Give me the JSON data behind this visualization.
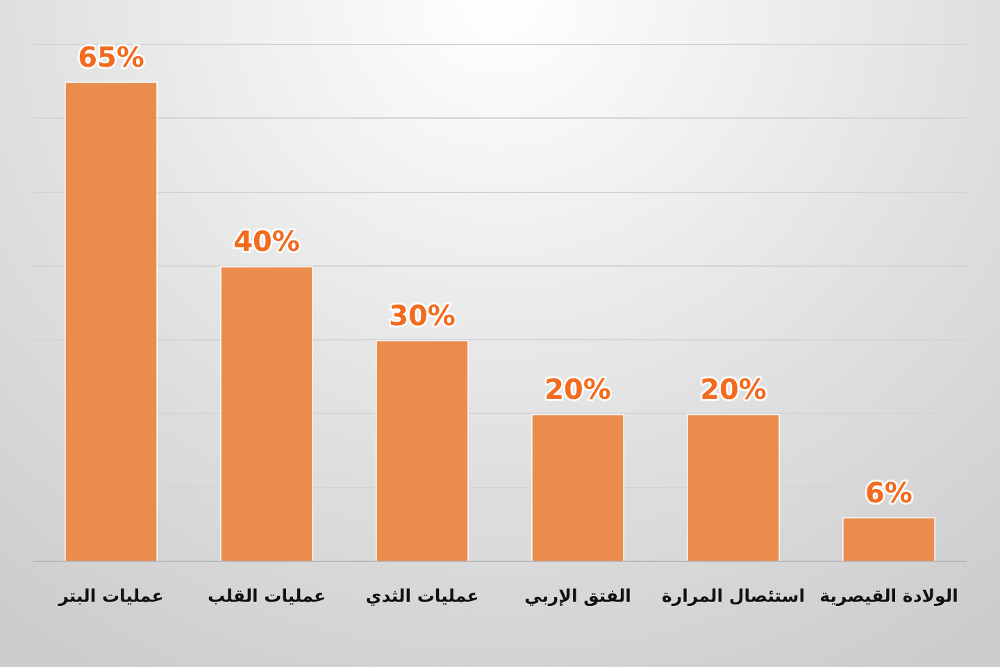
{
  "chart_data": {
    "type": "bar",
    "categories": [
      "عمليات البتر",
      "عمليات القلب",
      "عمليات الثدي",
      "الفتق الإربي",
      "استئصال المرارة",
      "الولادة القيصرية"
    ],
    "values": [
      65,
      40,
      30,
      20,
      20,
      6
    ],
    "color": "#eb8c4d",
    "value_labels": [
      "65%",
      "40%",
      "30%",
      "20%",
      "20%",
      "6%"
    ],
    "ylim": [
      0,
      70
    ],
    "yticks": [
      {
        "value": 0,
        "label": null
      },
      {
        "value": 10,
        "label": null
      },
      {
        "value": 20,
        "label": null
      },
      {
        "value": 30,
        "label": null
      },
      {
        "value": 40,
        "label": null
      },
      {
        "value": 50,
        "label": null
      },
      {
        "value": 60,
        "label": null
      },
      {
        "value": 70,
        "label": null
      }
    ],
    "grid": "y",
    "legend": false,
    "tick_labels": "x"
  }
}
